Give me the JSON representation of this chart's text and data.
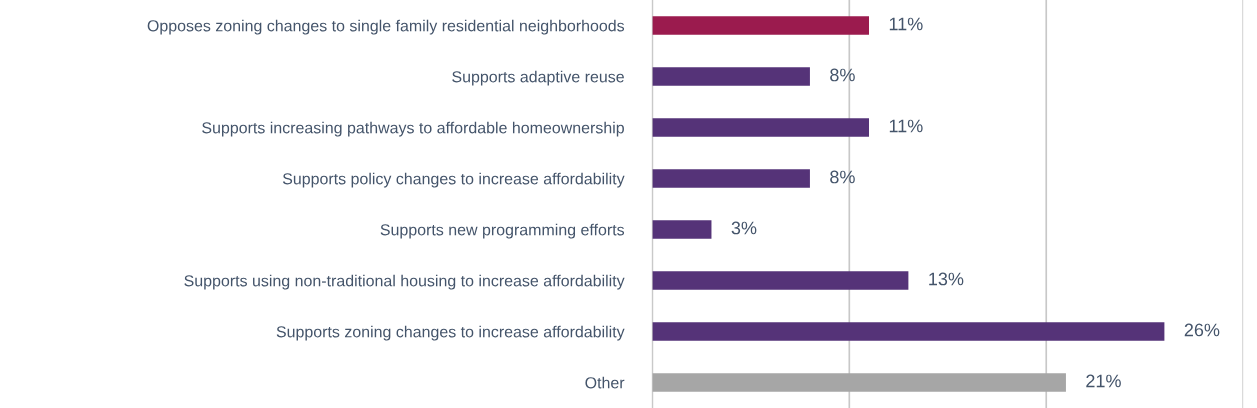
{
  "chart_data": {
    "type": "bar",
    "orientation": "horizontal",
    "categories": [
      "Opposes zoning changes to single family residential neighborhoods",
      "Supports adaptive reuse",
      "Supports increasing pathways to affordable homeownership",
      "Supports policy changes to increase affordability",
      "Supports new programming efforts",
      "Supports using non-traditional housing to increase affordability",
      "Supports zoning changes to increase affordability",
      "Other"
    ],
    "values": [
      11,
      8,
      11,
      8,
      3,
      13,
      26,
      21
    ],
    "value_labels": [
      "11%",
      "8%",
      "11%",
      "8%",
      "3%",
      "13%",
      "26%",
      "21%"
    ],
    "colors": [
      "#9b1b4e",
      "#553378",
      "#553378",
      "#553378",
      "#553378",
      "#553378",
      "#553378",
      "#a6a6a6"
    ],
    "xlim": [
      0,
      30
    ],
    "xticks": [
      {
        "value": 0,
        "label": null
      },
      {
        "value": 10,
        "label": null
      },
      {
        "value": 20,
        "label": null
      },
      {
        "value": 30,
        "label": null
      }
    ],
    "grid": "x",
    "legend": false,
    "tick_labels": "y"
  }
}
